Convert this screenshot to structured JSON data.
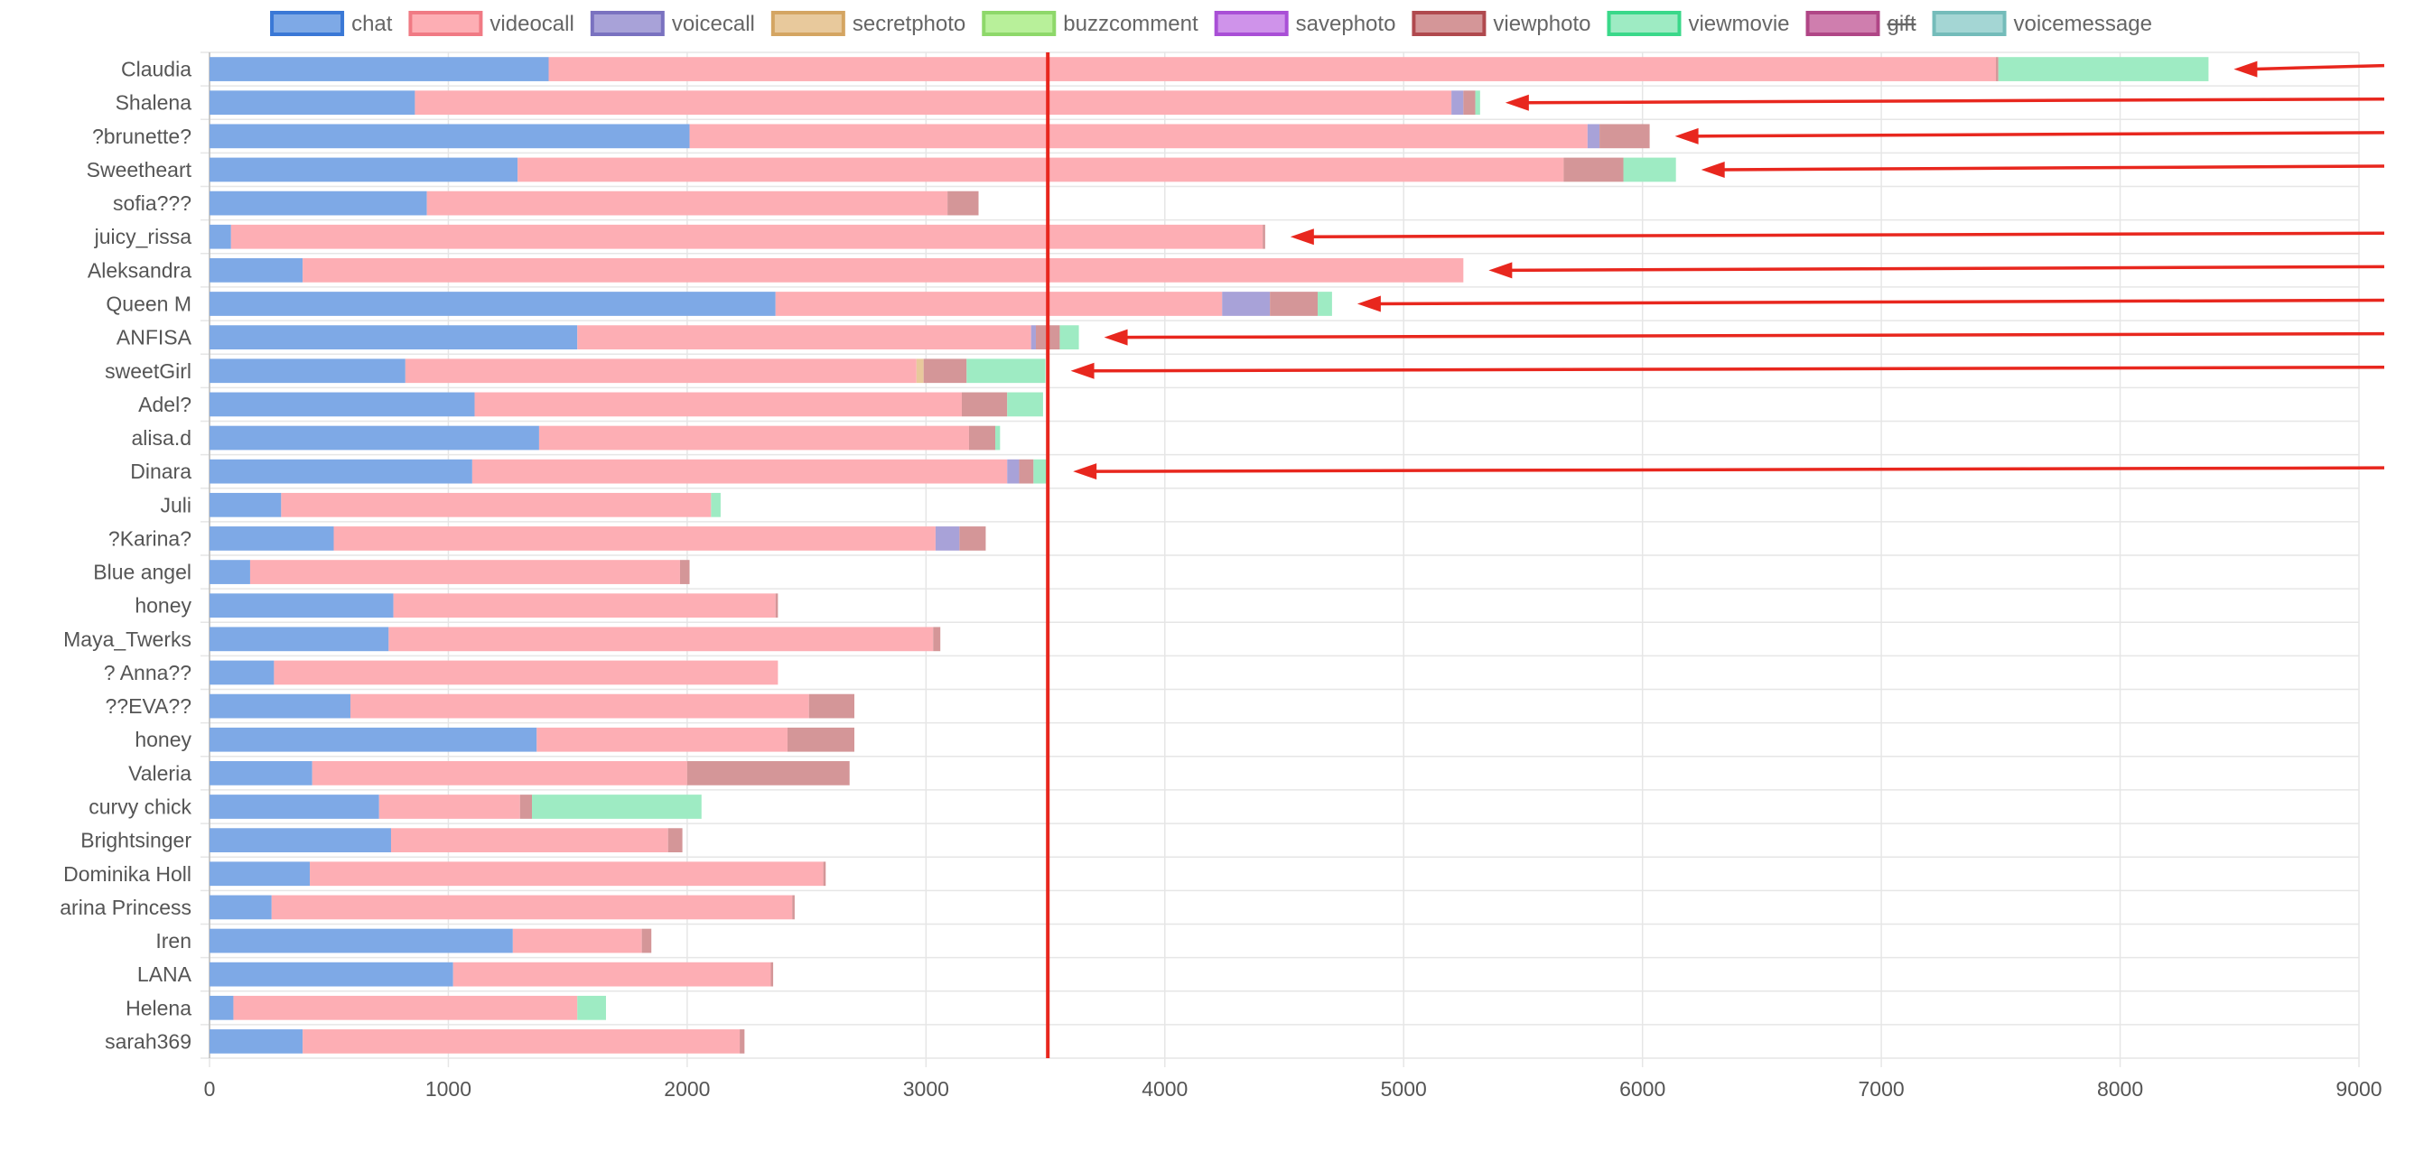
{
  "chart_data": {
    "type": "bar",
    "orientation": "horizontal",
    "stacked": true,
    "xlim": [
      0,
      9000
    ],
    "x_ticks": [
      "0",
      "1000",
      "2000",
      "3000",
      "4000",
      "5000",
      "6000",
      "7000",
      "8000",
      "9000"
    ],
    "grid": true,
    "legend_position": "top",
    "categories": [
      "Claudia",
      "Shalena",
      "?brunette?",
      "Sweetheart",
      "sofia???",
      "juicy_rissa",
      "Aleksandra",
      "Queen M",
      "ANFISA",
      "sweetGirl",
      "Adel?",
      "alisa.d",
      "Dinara",
      "Juli",
      "?Karina?",
      "Blue angel",
      "honey",
      "Maya_Twerks",
      "? Anna??",
      "??EVA??",
      "honey",
      "Valeria",
      "curvy chick",
      "Brightsinger",
      "Dominika Holl",
      "arina Princess",
      "Iren",
      "LANA",
      "Helena",
      "sarah369"
    ],
    "series": [
      {
        "name": "chat",
        "color": "#7ea9e6",
        "border": "#3a78d6",
        "hidden": false,
        "values": [
          1420,
          860,
          2010,
          1290,
          910,
          90,
          390,
          2370,
          1540,
          820,
          1110,
          1380,
          1100,
          300,
          520,
          170,
          770,
          750,
          270,
          590,
          1370,
          430,
          710,
          760,
          420,
          260,
          1270,
          1020,
          100,
          390
        ]
      },
      {
        "name": "videocall",
        "color": "#fdaeb4",
        "border": "#f07a84",
        "hidden": false,
        "values": [
          6060,
          4340,
          3760,
          4380,
          2180,
          4320,
          4860,
          1870,
          1900,
          2140,
          2040,
          1800,
          2240,
          1800,
          2520,
          1800,
          1600,
          2280,
          2110,
          1920,
          1050,
          1570,
          590,
          1160,
          2150,
          2180,
          540,
          1330,
          1440,
          1830
        ]
      },
      {
        "name": "voicecall",
        "color": "#a8a2d8",
        "border": "#7a72c0",
        "hidden": false,
        "values": [
          0,
          50,
          50,
          0,
          0,
          0,
          0,
          200,
          20,
          0,
          0,
          0,
          50,
          0,
          100,
          0,
          0,
          0,
          0,
          0,
          0,
          0,
          0,
          0,
          0,
          0,
          0,
          0,
          0,
          0
        ]
      },
      {
        "name": "secretphoto",
        "color": "#e8c99c",
        "border": "#d4a562",
        "hidden": false,
        "values": [
          0,
          0,
          0,
          0,
          0,
          0,
          0,
          0,
          0,
          30,
          0,
          0,
          0,
          0,
          0,
          0,
          0,
          0,
          0,
          0,
          0,
          0,
          0,
          0,
          0,
          0,
          0,
          0,
          0,
          0
        ]
      },
      {
        "name": "buzzcomment",
        "color": "#b8f09a",
        "border": "#8ed86a",
        "hidden": false,
        "values": [
          0,
          0,
          0,
          0,
          0,
          0,
          0,
          0,
          0,
          0,
          0,
          0,
          0,
          0,
          0,
          0,
          0,
          0,
          0,
          0,
          0,
          0,
          0,
          0,
          0,
          0,
          0,
          0,
          0,
          0
        ]
      },
      {
        "name": "savephoto",
        "color": "#cf93ea",
        "border": "#a94fd6",
        "hidden": false,
        "values": [
          0,
          0,
          0,
          0,
          0,
          0,
          0,
          0,
          0,
          0,
          0,
          0,
          0,
          0,
          0,
          0,
          0,
          0,
          0,
          0,
          0,
          0,
          0,
          0,
          0,
          0,
          0,
          0,
          0,
          0
        ]
      },
      {
        "name": "viewphoto",
        "color": "#d49698",
        "border": "#b0494e",
        "hidden": false,
        "values": [
          10,
          50,
          210,
          250,
          130,
          10,
          0,
          200,
          100,
          180,
          190,
          110,
          60,
          0,
          110,
          40,
          10,
          30,
          0,
          190,
          280,
          680,
          50,
          60,
          10,
          10,
          40,
          10,
          0,
          20
        ]
      },
      {
        "name": "viewmovie",
        "color": "#9eebc3",
        "border": "#3ad88a",
        "hidden": false,
        "values": [
          880,
          20,
          0,
          220,
          0,
          0,
          0,
          60,
          80,
          330,
          150,
          20,
          60,
          40,
          0,
          0,
          0,
          0,
          0,
          0,
          0,
          0,
          710,
          0,
          0,
          0,
          0,
          0,
          120,
          0
        ]
      },
      {
        "name": "gift",
        "color": "#cf7eae",
        "border": "#b04686",
        "hidden": true,
        "values": [
          0,
          0,
          0,
          0,
          0,
          0,
          0,
          0,
          0,
          0,
          0,
          0,
          0,
          0,
          0,
          0,
          0,
          0,
          0,
          0,
          0,
          0,
          0,
          0,
          0,
          0,
          0,
          0,
          0,
          0
        ]
      },
      {
        "name": "voicemessage",
        "color": "#a4d6d4",
        "border": "#74bcba",
        "hidden": false,
        "values": [
          0,
          0,
          0,
          0,
          0,
          0,
          0,
          0,
          0,
          0,
          0,
          0,
          0,
          0,
          0,
          0,
          0,
          0,
          0,
          0,
          0,
          0,
          0,
          0,
          0,
          0,
          0,
          0,
          0,
          0
        ]
      }
    ],
    "annotations": {
      "reference_line": {
        "x": 3510,
        "color": "#e8271e"
      },
      "arrows_color": "#e8271e",
      "arrow_rows": [
        "Claudia",
        "Shalena",
        "?brunette?",
        "Sweetheart",
        "juicy_rissa",
        "Aleksandra",
        "Queen M",
        "ANFISA",
        "sweetGirl",
        "Dinara"
      ]
    },
    "colors": {
      "grid": "#e6e6e6",
      "axis_text": "#555555",
      "legend_text": "#666666"
    }
  }
}
